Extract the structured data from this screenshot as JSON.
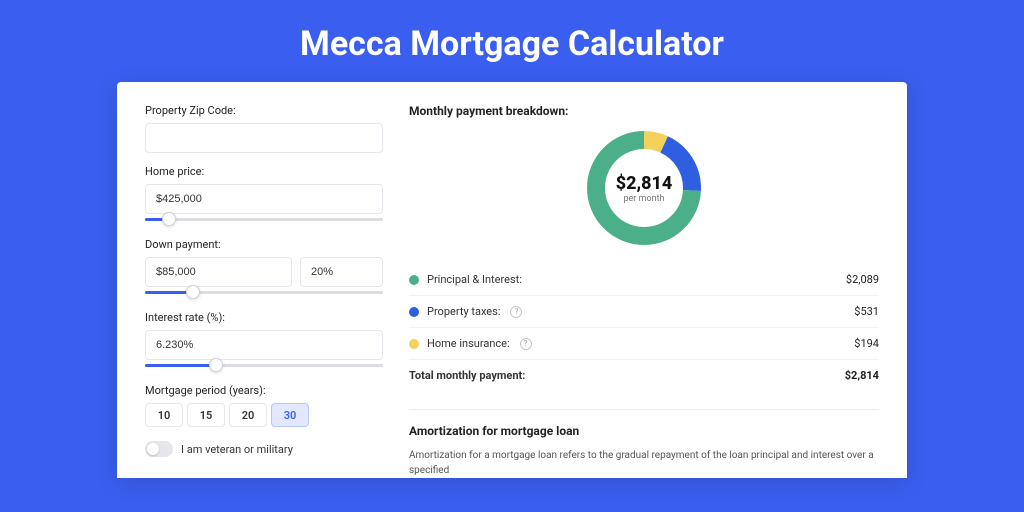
{
  "page_title": "Mecca Mortgage Calculator",
  "background_color": "#3a5ff0",
  "card_bg": "#ffffff",
  "form": {
    "zip_label": "Property Zip Code:",
    "zip_value": "",
    "home_price_label": "Home price:",
    "home_price_value": "$425,000",
    "home_price_slider_pct": 10,
    "down_payment_label": "Down payment:",
    "down_payment_value": "$85,000",
    "down_payment_pct_value": "20%",
    "down_payment_slider_pct": 20,
    "interest_label": "Interest rate (%):",
    "interest_value": "6.230%",
    "interest_slider_pct": 30,
    "period_label": "Mortgage period (years):",
    "periods": [
      "10",
      "15",
      "20",
      "30"
    ],
    "period_active_index": 3,
    "veteran_label": "I am veteran or military",
    "veteran_on": false
  },
  "breakdown": {
    "title": "Monthly payment breakdown:",
    "donut": {
      "center_amount": "$2,814",
      "center_sub": "per month",
      "segments": [
        {
          "label": "Principal & Interest:",
          "value": "$2,089",
          "color": "#4bb08a",
          "pct": 74.2,
          "help": false
        },
        {
          "label": "Property taxes:",
          "value": "$531",
          "color": "#2f5fe0",
          "pct": 18.9,
          "help": true
        },
        {
          "label": "Home insurance:",
          "value": "$194",
          "color": "#f3d15a",
          "pct": 6.9,
          "help": true
        }
      ],
      "stroke_width": 18,
      "bg_color": "#ffffff"
    },
    "total_label": "Total monthly payment:",
    "total_value": "$2,814"
  },
  "amortization": {
    "title": "Amortization for mortgage loan",
    "text": "Amortization for a mortgage loan refers to the gradual repayment of the loan principal and interest over a specified"
  }
}
